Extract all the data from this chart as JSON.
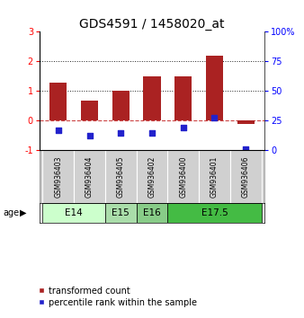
{
  "title": "GDS4591 / 1458020_at",
  "samples": [
    "GSM936403",
    "GSM936404",
    "GSM936405",
    "GSM936402",
    "GSM936400",
    "GSM936401",
    "GSM936406"
  ],
  "transformed_count": [
    1.28,
    0.68,
    1.0,
    1.48,
    1.5,
    2.2,
    -0.12
  ],
  "percentile_rank_left": [
    -0.32,
    -0.52,
    -0.42,
    -0.42,
    -0.22,
    0.1,
    -0.95
  ],
  "age_groups": [
    {
      "label": "E14",
      "start": 0,
      "end": 2,
      "color": "#ccffcc"
    },
    {
      "label": "E15",
      "start": 2,
      "end": 3,
      "color": "#aaddaa"
    },
    {
      "label": "E16",
      "start": 3,
      "end": 4,
      "color": "#88cc88"
    },
    {
      "label": "E17.5",
      "start": 4,
      "end": 7,
      "color": "#44bb44"
    }
  ],
  "bar_color": "#aa2222",
  "dot_color": "#2222cc",
  "ylim_left": [
    -1,
    3
  ],
  "ylim_right": [
    0,
    100
  ],
  "yticks_left": [
    -1,
    0,
    1,
    2,
    3
  ],
  "yticks_right": [
    0,
    25,
    50,
    75,
    100
  ],
  "zero_line_color": "#cc4444",
  "dotted_line_color": "#222222",
  "bg_color": "#ffffff",
  "title_fontsize": 10,
  "tick_fontsize": 7,
  "legend_fontsize": 7,
  "age_label": "age"
}
